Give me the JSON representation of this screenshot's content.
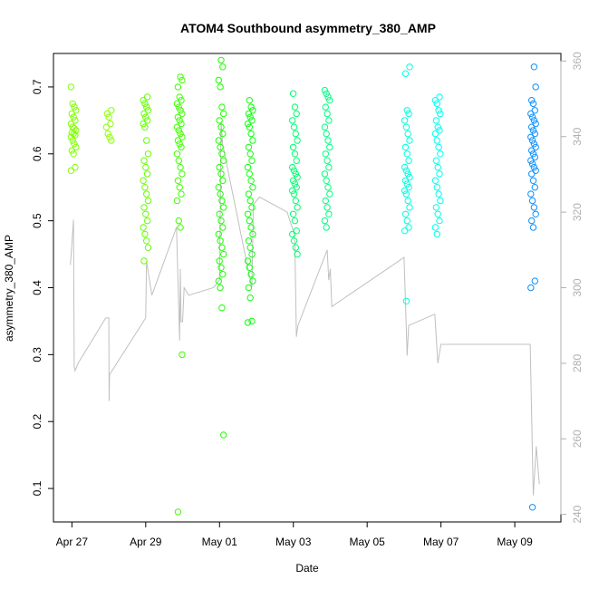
{
  "chart_data": {
    "type": "scatter",
    "title": "ATOM4 Southbound asymmetry_380_AMP",
    "xlabel": "Date",
    "ylabel": "asymmetry_380_AMP",
    "xlim": [
      "2024-04-26T12:00",
      "2024-05-10T06:00"
    ],
    "ylim": [
      0.05,
      0.75
    ],
    "x_ticks": [
      {
        "date": "2024-04-27T00:00",
        "label": "Apr 27"
      },
      {
        "date": "2024-04-29T00:00",
        "label": "Apr 29"
      },
      {
        "date": "2024-05-01T00:00",
        "label": "May 01"
      },
      {
        "date": "2024-05-03T00:00",
        "label": "May 03"
      },
      {
        "date": "2024-05-05T00:00",
        "label": "May 05"
      },
      {
        "date": "2024-05-07T00:00",
        "label": "May 07"
      },
      {
        "date": "2024-05-09T00:00",
        "label": "May 09"
      }
    ],
    "y_ticks": [
      0.1,
      0.2,
      0.3,
      0.4,
      0.5,
      0.6,
      0.7
    ],
    "y2_ticks": [
      240,
      260,
      280,
      300,
      320,
      340,
      360
    ],
    "y2lim": [
      238,
      362
    ],
    "clusters": [
      {
        "date": "2024-04-27T01:00",
        "color": "#80ff00",
        "values": [
          0.7,
          0.675,
          0.67,
          0.665,
          0.66,
          0.655,
          0.65,
          0.645,
          0.64,
          0.638,
          0.635,
          0.632,
          0.63,
          0.628,
          0.625,
          0.62,
          0.615,
          0.61,
          0.605,
          0.6,
          0.58,
          0.575
        ]
      },
      {
        "date": "2024-04-28T00:00",
        "color": "#8cff00",
        "values": [
          0.665,
          0.66,
          0.655,
          0.645,
          0.64,
          0.63,
          0.625,
          0.62
        ]
      },
      {
        "date": "2024-04-29T00:00",
        "color": "#66ff00",
        "values": [
          0.685,
          0.68,
          0.675,
          0.67,
          0.665,
          0.66,
          0.655,
          0.65,
          0.645,
          0.64,
          0.62,
          0.6,
          0.59,
          0.58,
          0.57,
          0.56,
          0.55,
          0.54,
          0.53,
          0.52,
          0.51,
          0.5,
          0.49,
          0.48,
          0.47,
          0.46,
          0.44
        ]
      },
      {
        "date": "2024-04-29T22:00",
        "color": "#40ff00",
        "values": [
          0.715,
          0.71,
          0.7,
          0.685,
          0.68,
          0.675,
          0.67,
          0.665,
          0.66,
          0.655,
          0.65,
          0.645,
          0.64,
          0.635,
          0.63,
          0.625,
          0.62,
          0.615,
          0.61,
          0.6,
          0.59,
          0.58,
          0.57,
          0.56,
          0.55,
          0.54,
          0.53,
          0.5,
          0.49,
          0.3,
          0.065
        ]
      },
      {
        "date": "2024-05-01T01:00",
        "color": "#1eff00",
        "values": [
          0.74,
          0.73,
          0.71,
          0.7,
          0.67,
          0.66,
          0.65,
          0.64,
          0.63,
          0.62,
          0.61,
          0.6,
          0.59,
          0.58,
          0.57,
          0.56,
          0.55,
          0.54,
          0.53,
          0.52,
          0.51,
          0.5,
          0.49,
          0.48,
          0.47,
          0.46,
          0.45,
          0.44,
          0.43,
          0.42,
          0.41,
          0.4,
          0.37,
          0.18
        ]
      },
      {
        "date": "2024-05-01T20:00",
        "color": "#10ff10",
        "values": [
          0.68,
          0.67,
          0.665,
          0.66,
          0.655,
          0.65,
          0.645,
          0.64,
          0.63,
          0.62,
          0.61,
          0.6,
          0.59,
          0.58,
          0.57,
          0.56,
          0.55,
          0.54,
          0.53,
          0.52,
          0.51,
          0.5,
          0.49,
          0.48,
          0.47,
          0.46,
          0.45,
          0.44,
          0.43,
          0.42,
          0.41,
          0.4,
          0.385,
          0.35,
          0.348
        ]
      },
      {
        "date": "2024-05-03T01:00",
        "color": "#00ff70",
        "values": [
          0.69,
          0.67,
          0.66,
          0.65,
          0.64,
          0.63,
          0.62,
          0.61,
          0.6,
          0.59,
          0.58,
          0.575,
          0.57,
          0.565,
          0.56,
          0.555,
          0.55,
          0.545,
          0.54,
          0.53,
          0.52,
          0.51,
          0.5,
          0.485,
          0.48,
          0.47,
          0.46,
          0.45
        ]
      },
      {
        "date": "2024-05-03T22:00",
        "color": "#00ff80",
        "values": [
          0.695,
          0.69,
          0.685,
          0.68,
          0.67,
          0.66,
          0.65,
          0.64,
          0.63,
          0.62,
          0.61,
          0.6,
          0.59,
          0.58,
          0.57,
          0.56,
          0.55,
          0.54,
          0.53,
          0.52,
          0.51,
          0.5,
          0.49
        ]
      },
      {
        "date": "2024-05-06T02:00",
        "color": "#00ffe0",
        "values": [
          0.73,
          0.72,
          0.665,
          0.66,
          0.65,
          0.64,
          0.63,
          0.62,
          0.61,
          0.6,
          0.59,
          0.58,
          0.575,
          0.57,
          0.565,
          0.56,
          0.555,
          0.55,
          0.545,
          0.54,
          0.53,
          0.52,
          0.51,
          0.5,
          0.49,
          0.485,
          0.38
        ]
      },
      {
        "date": "2024-05-06T22:00",
        "color": "#00ffee",
        "values": [
          0.685,
          0.68,
          0.675,
          0.665,
          0.66,
          0.65,
          0.64,
          0.635,
          0.63,
          0.62,
          0.61,
          0.6,
          0.59,
          0.58,
          0.57,
          0.56,
          0.55,
          0.54,
          0.53,
          0.52,
          0.51,
          0.5,
          0.49,
          0.48
        ]
      },
      {
        "date": "2024-05-09T12:00",
        "color": "#0a90ff",
        "values": [
          0.73,
          0.7,
          0.68,
          0.675,
          0.665,
          0.66,
          0.655,
          0.65,
          0.645,
          0.64,
          0.635,
          0.63,
          0.625,
          0.62,
          0.615,
          0.61,
          0.605,
          0.6,
          0.595,
          0.59,
          0.585,
          0.58,
          0.575,
          0.57,
          0.56,
          0.55,
          0.54,
          0.53,
          0.52,
          0.51,
          0.5,
          0.49,
          0.41,
          0.4,
          0.072
        ]
      }
    ],
    "secondary_series": {
      "color": "#c0c0c0",
      "axis": "right",
      "points": [
        [
          "2024-04-26T23:00",
          306
        ],
        [
          "2024-04-27T01:00",
          318
        ],
        [
          "2024-04-27T01:30",
          279
        ],
        [
          "2024-04-27T02:00",
          278
        ],
        [
          "2024-04-27T04:00",
          280
        ],
        [
          "2024-04-27T22:00",
          292
        ],
        [
          "2024-04-28T00:00",
          292
        ],
        [
          "2024-04-28T00:10",
          270
        ],
        [
          "2024-04-28T00:30",
          277
        ],
        [
          "2024-04-29T00:00",
          292
        ],
        [
          "2024-04-29T00:30",
          307
        ],
        [
          "2024-04-29T04:00",
          298
        ],
        [
          "2024-04-29T20:00",
          316
        ],
        [
          "2024-04-29T22:00",
          286
        ],
        [
          "2024-04-29T22:30",
          305
        ],
        [
          "2024-04-29T23:00",
          291
        ],
        [
          "2024-04-30T00:00",
          291
        ],
        [
          "2024-04-30T01:00",
          300
        ],
        [
          "2024-04-30T04:00",
          298
        ],
        [
          "2024-04-30T20:00",
          300
        ],
        [
          "2024-05-01T00:00",
          302
        ],
        [
          "2024-05-01T01:00",
          344
        ],
        [
          "2024-05-01T02:00",
          338
        ],
        [
          "2024-05-01T20:00",
          302
        ],
        [
          "2024-05-01T21:00",
          300
        ],
        [
          "2024-05-01T22:00",
          322
        ],
        [
          "2024-05-02T02:00",
          324
        ],
        [
          "2024-05-02T20:00",
          320
        ],
        [
          "2024-05-03T00:00",
          315
        ],
        [
          "2024-05-03T01:00",
          312
        ],
        [
          "2024-05-03T02:00",
          287
        ],
        [
          "2024-05-03T03:00",
          290
        ],
        [
          "2024-05-03T22:00",
          310
        ],
        [
          "2024-05-03T23:00",
          302
        ],
        [
          "2024-05-04T00:00",
          305
        ],
        [
          "2024-05-04T01:00",
          295
        ],
        [
          "2024-05-06T00:00",
          308
        ],
        [
          "2024-05-06T02:00",
          282
        ],
        [
          "2024-05-06T03:00",
          290
        ],
        [
          "2024-05-06T20:00",
          293
        ],
        [
          "2024-05-06T22:00",
          280
        ],
        [
          "2024-05-07T00:00",
          285
        ],
        [
          "2024-05-09T10:00",
          285
        ],
        [
          "2024-05-09T12:00",
          245
        ],
        [
          "2024-05-09T14:00",
          258
        ],
        [
          "2024-05-09T16:00",
          248
        ]
      ]
    },
    "grid": false,
    "legend": "none"
  }
}
